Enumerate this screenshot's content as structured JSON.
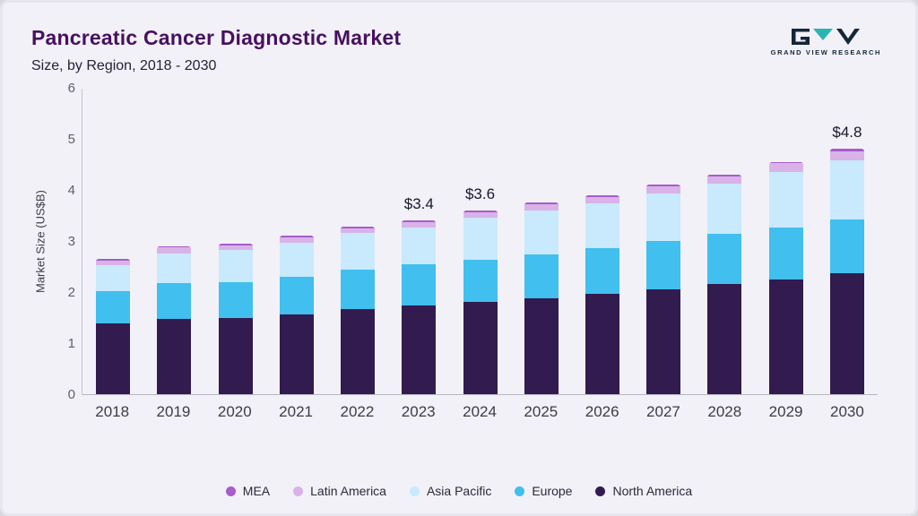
{
  "header": {
    "title": "Pancreatic Cancer Diagnostic Market",
    "subtitle": "Size, by Region, 2018 - 2030",
    "logo_text": "GRAND VIEW RESEARCH"
  },
  "colors": {
    "background": "#f2f1f8",
    "title": "#47115f",
    "subtitle": "#262038",
    "logo_dark": "#14273a",
    "logo_teal": "#2ab5b0",
    "axis": "#b7b7c2"
  },
  "chart_data": {
    "type": "bar",
    "stacked": true,
    "title": "Pancreatic Cancer Diagnostic Market",
    "subtitle": "Size, by Region, 2018 - 2030",
    "xlabel": "",
    "ylabel": "Market Size (US$B)",
    "ylim": [
      0,
      6
    ],
    "yticks": [
      0,
      1,
      2,
      3,
      4,
      5,
      6
    ],
    "grid": false,
    "legend_position": "bottom",
    "categories": [
      "2018",
      "2019",
      "2020",
      "2021",
      "2022",
      "2023",
      "2024",
      "2025",
      "2026",
      "2027",
      "2028",
      "2029",
      "2030"
    ],
    "series": [
      {
        "name": "North America",
        "color": "#321b4f",
        "values": [
          1.38,
          1.47,
          1.5,
          1.57,
          1.67,
          1.73,
          1.8,
          1.88,
          1.97,
          2.05,
          2.15,
          2.25,
          2.36
        ]
      },
      {
        "name": "Europe",
        "color": "#41bfee",
        "values": [
          0.64,
          0.7,
          0.7,
          0.73,
          0.77,
          0.81,
          0.83,
          0.85,
          0.89,
          0.95,
          0.99,
          1.02,
          1.07
        ]
      },
      {
        "name": "Asia Pacific",
        "color": "#c9e9fc",
        "values": [
          0.5,
          0.59,
          0.62,
          0.66,
          0.71,
          0.73,
          0.82,
          0.87,
          0.87,
          0.93,
          0.98,
          1.09,
          1.15
        ]
      },
      {
        "name": "Latin America",
        "color": "#d9b3e8",
        "values": [
          0.1,
          0.11,
          0.1,
          0.11,
          0.1,
          0.1,
          0.12,
          0.12,
          0.13,
          0.14,
          0.15,
          0.16,
          0.17
        ]
      },
      {
        "name": "MEA",
        "color": "#a65ccb",
        "values": [
          0.03,
          0.03,
          0.03,
          0.03,
          0.03,
          0.03,
          0.03,
          0.03,
          0.03,
          0.03,
          0.03,
          0.03,
          0.05
        ]
      }
    ],
    "totals": [
      2.65,
      2.9,
      2.95,
      3.1,
      3.28,
      3.4,
      3.6,
      3.75,
      3.89,
      4.1,
      4.3,
      4.55,
      4.8
    ],
    "bar_labels": {
      "2023": "$3.4",
      "2024": "$3.6",
      "2030": "$4.8"
    },
    "legend_order": [
      "MEA",
      "Latin America",
      "Asia Pacific",
      "Europe",
      "North America"
    ]
  }
}
